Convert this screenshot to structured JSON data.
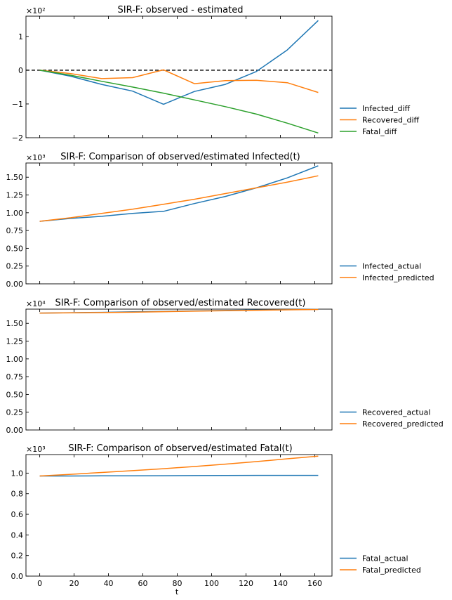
{
  "chart_data": [
    {
      "type": "line",
      "title": "SIR-F: observed - estimated",
      "multiplier": "×10²",
      "xlim": [
        -8,
        170
      ],
      "ylim": [
        -2.0,
        1.6
      ],
      "yticks": [
        1,
        0,
        -1,
        -2
      ],
      "ytick_labels": [
        "1",
        "0",
        "−1",
        "−2"
      ],
      "hline": 0,
      "x": [
        0,
        18,
        36,
        54,
        72,
        90,
        108,
        126,
        144,
        162
      ],
      "series": [
        {
          "name": "Infected_diff",
          "color": "#1f77b4",
          "values": [
            0,
            -0.18,
            -0.42,
            -0.62,
            -1.01,
            -0.63,
            -0.42,
            -0.04,
            0.6,
            1.47
          ]
        },
        {
          "name": "Recovered_diff",
          "color": "#ff7f0e",
          "values": [
            0,
            -0.1,
            -0.25,
            -0.22,
            0.01,
            -0.4,
            -0.31,
            -0.3,
            -0.37,
            -0.66
          ]
        },
        {
          "name": "Fatal_diff",
          "color": "#2ca02c",
          "values": [
            0,
            -0.15,
            -0.33,
            -0.5,
            -0.68,
            -0.88,
            -1.08,
            -1.3,
            -1.57,
            -1.86
          ]
        }
      ]
    },
    {
      "type": "line",
      "title": "SIR-F: Comparison of observed/estimated Infected(t)",
      "multiplier": "×10³",
      "xlim": [
        -8,
        170
      ],
      "ylim": [
        0,
        1.7
      ],
      "yticks": [
        0,
        0.25,
        0.5,
        0.75,
        1.0,
        1.25,
        1.5
      ],
      "ytick_labels": [
        "0.00",
        "0.25",
        "0.50",
        "0.75",
        "1.00",
        "1.25",
        "1.50"
      ],
      "x": [
        0,
        18,
        36,
        54,
        72,
        90,
        108,
        126,
        144,
        162
      ],
      "series": [
        {
          "name": "Infected_actual",
          "color": "#1f77b4",
          "values": [
            0.88,
            0.92,
            0.95,
            0.99,
            1.02,
            1.13,
            1.23,
            1.35,
            1.49,
            1.66
          ]
        },
        {
          "name": "Infected_predicted",
          "color": "#ff7f0e",
          "values": [
            0.88,
            0.93,
            0.99,
            1.05,
            1.12,
            1.19,
            1.27,
            1.35,
            1.43,
            1.52
          ]
        }
      ]
    },
    {
      "type": "line",
      "title": "SIR-F: Comparison of observed/estimated Recovered(t)",
      "multiplier": "×10⁴",
      "xlim": [
        -8,
        170
      ],
      "ylim": [
        0,
        1.7
      ],
      "yticks": [
        0,
        0.25,
        0.5,
        0.75,
        1.0,
        1.25,
        1.5
      ],
      "ytick_labels": [
        "0.00",
        "0.25",
        "0.50",
        "0.75",
        "1.00",
        "1.25",
        "1.50"
      ],
      "x": [
        0,
        18,
        36,
        54,
        72,
        90,
        108,
        126,
        144,
        162
      ],
      "series": [
        {
          "name": "Recovered_actual",
          "color": "#1f77b4",
          "values": [
            1.645,
            1.65,
            1.655,
            1.662,
            1.668,
            1.675,
            1.681,
            1.687,
            1.692,
            1.698
          ]
        },
        {
          "name": "Recovered_predicted",
          "color": "#ff7f0e",
          "values": [
            1.645,
            1.648,
            1.652,
            1.657,
            1.664,
            1.671,
            1.678,
            1.684,
            1.69,
            1.695
          ]
        }
      ]
    },
    {
      "type": "line",
      "title": "SIR-F: Comparison of observed/estimated Fatal(t)",
      "multiplier": "×10³",
      "xlim": [
        -8,
        170
      ],
      "ylim": [
        0,
        1.18
      ],
      "yticks": [
        0,
        0.2,
        0.4,
        0.6,
        0.8,
        1.0
      ],
      "ytick_labels": [
        "0.0",
        "0.2",
        "0.4",
        "0.6",
        "0.8",
        "1.0"
      ],
      "xticks": [
        0,
        20,
        40,
        60,
        80,
        100,
        120,
        140,
        160
      ],
      "xlabel": "t",
      "x": [
        0,
        18,
        36,
        54,
        72,
        90,
        108,
        126,
        144,
        162
      ],
      "series": [
        {
          "name": "Fatal_actual",
          "color": "#1f77b4",
          "values": [
            0.972,
            0.972,
            0.973,
            0.973,
            0.975,
            0.976,
            0.977,
            0.978,
            0.978,
            0.978
          ]
        },
        {
          "name": "Fatal_predicted",
          "color": "#ff7f0e",
          "values": [
            0.972,
            0.988,
            1.006,
            1.024,
            1.043,
            1.064,
            1.087,
            1.112,
            1.139,
            1.165
          ]
        }
      ]
    }
  ]
}
